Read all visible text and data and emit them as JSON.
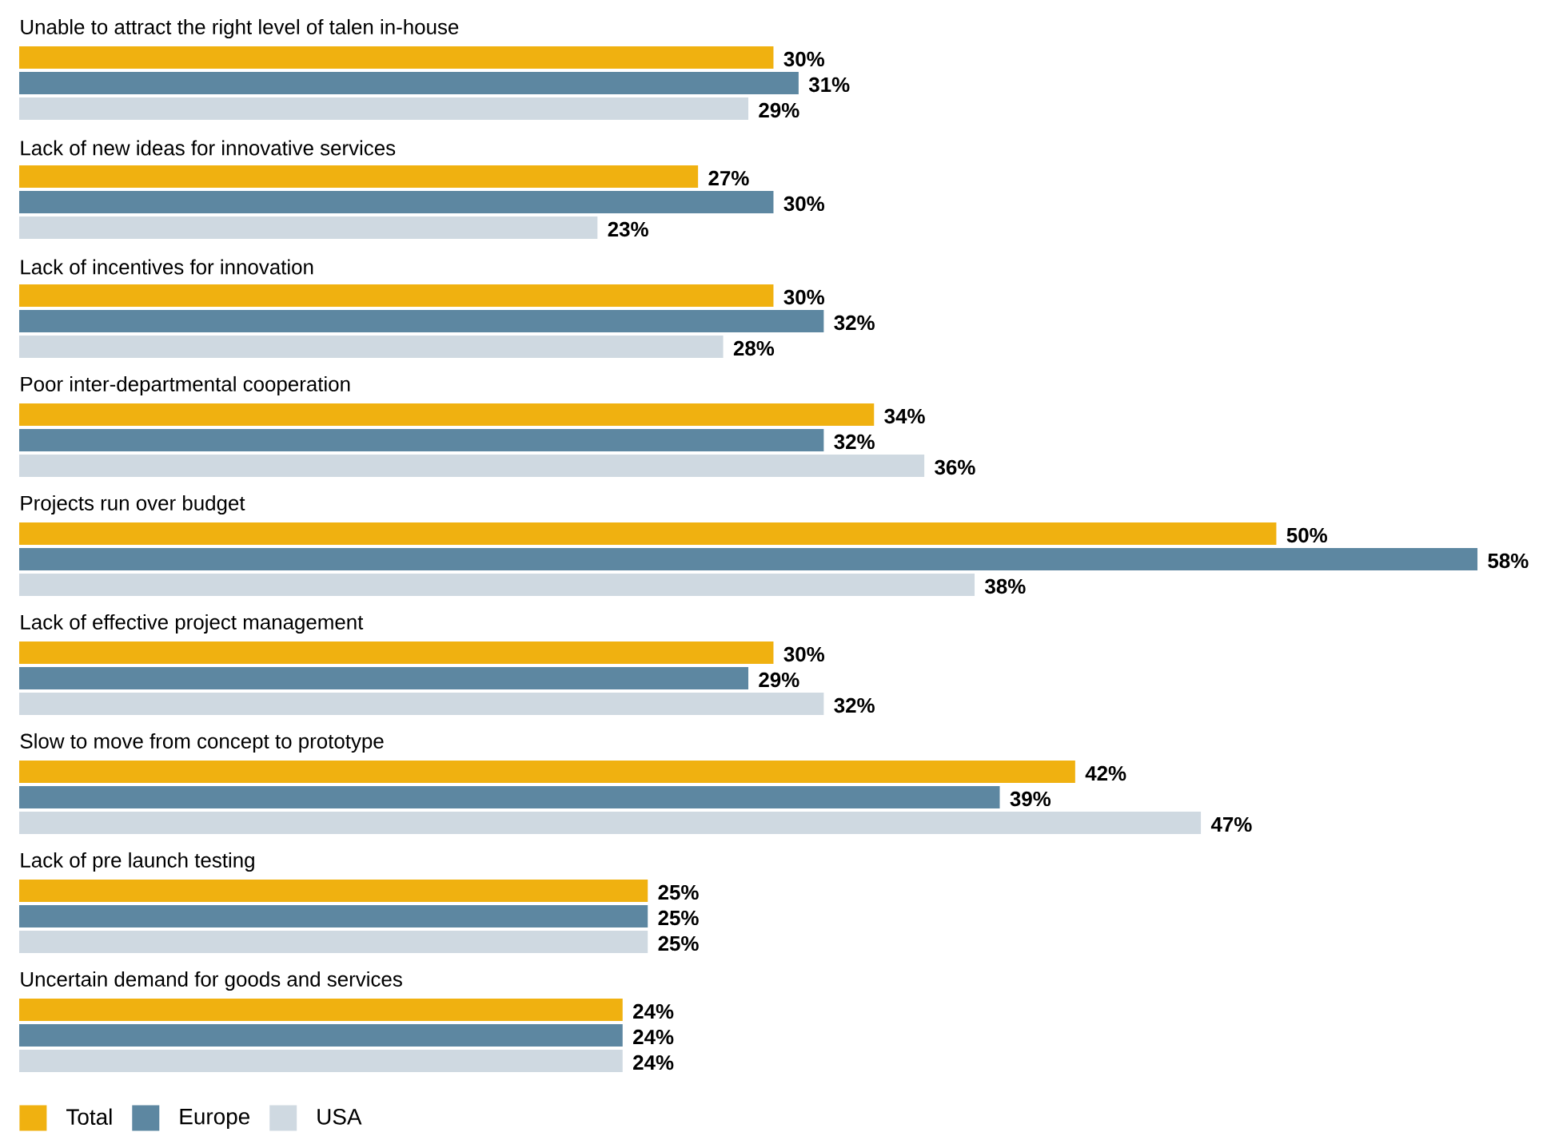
{
  "chart_data": {
    "type": "bar",
    "orientation": "horizontal",
    "legend": "bottom left",
    "categories": [
      "Unable to attract the right level of talen in-house",
      "Lack of new ideas for innovative services",
      "Lack of incentives for innovation",
      "Poor inter-departmental cooperation",
      "Projects run over budget",
      "Lack of effective project management",
      "Slow to move from concept to prototype",
      "Lack of pre launch testing",
      "Uncertain demand for goods and services"
    ],
    "series": [
      {
        "name": "Total",
        "color": "#f0b110",
        "values": [
          30,
          27,
          30,
          34,
          50,
          30,
          42,
          25,
          24
        ],
        "value_labels": [
          "30%",
          "27%",
          "30%",
          "34%",
          "50%",
          "30%",
          "42%",
          "25%",
          "24%"
        ]
      },
      {
        "name": "Europe",
        "color": "#5d87a1",
        "values": [
          31,
          30,
          32,
          32,
          58,
          29,
          39,
          25,
          24
        ],
        "value_labels": [
          "31%",
          "30%",
          "32%",
          "32%",
          "58%",
          "29%",
          "39%",
          "25%",
          "24%"
        ]
      },
      {
        "name": "USA",
        "color": "#cfd9e1",
        "values": [
          29,
          23,
          28,
          36,
          38,
          32,
          47,
          25,
          24
        ],
        "value_labels": [
          "29%",
          "23%",
          "28%",
          "36%",
          "38%",
          "32%",
          "47%",
          "25%",
          "24%"
        ]
      }
    ]
  }
}
